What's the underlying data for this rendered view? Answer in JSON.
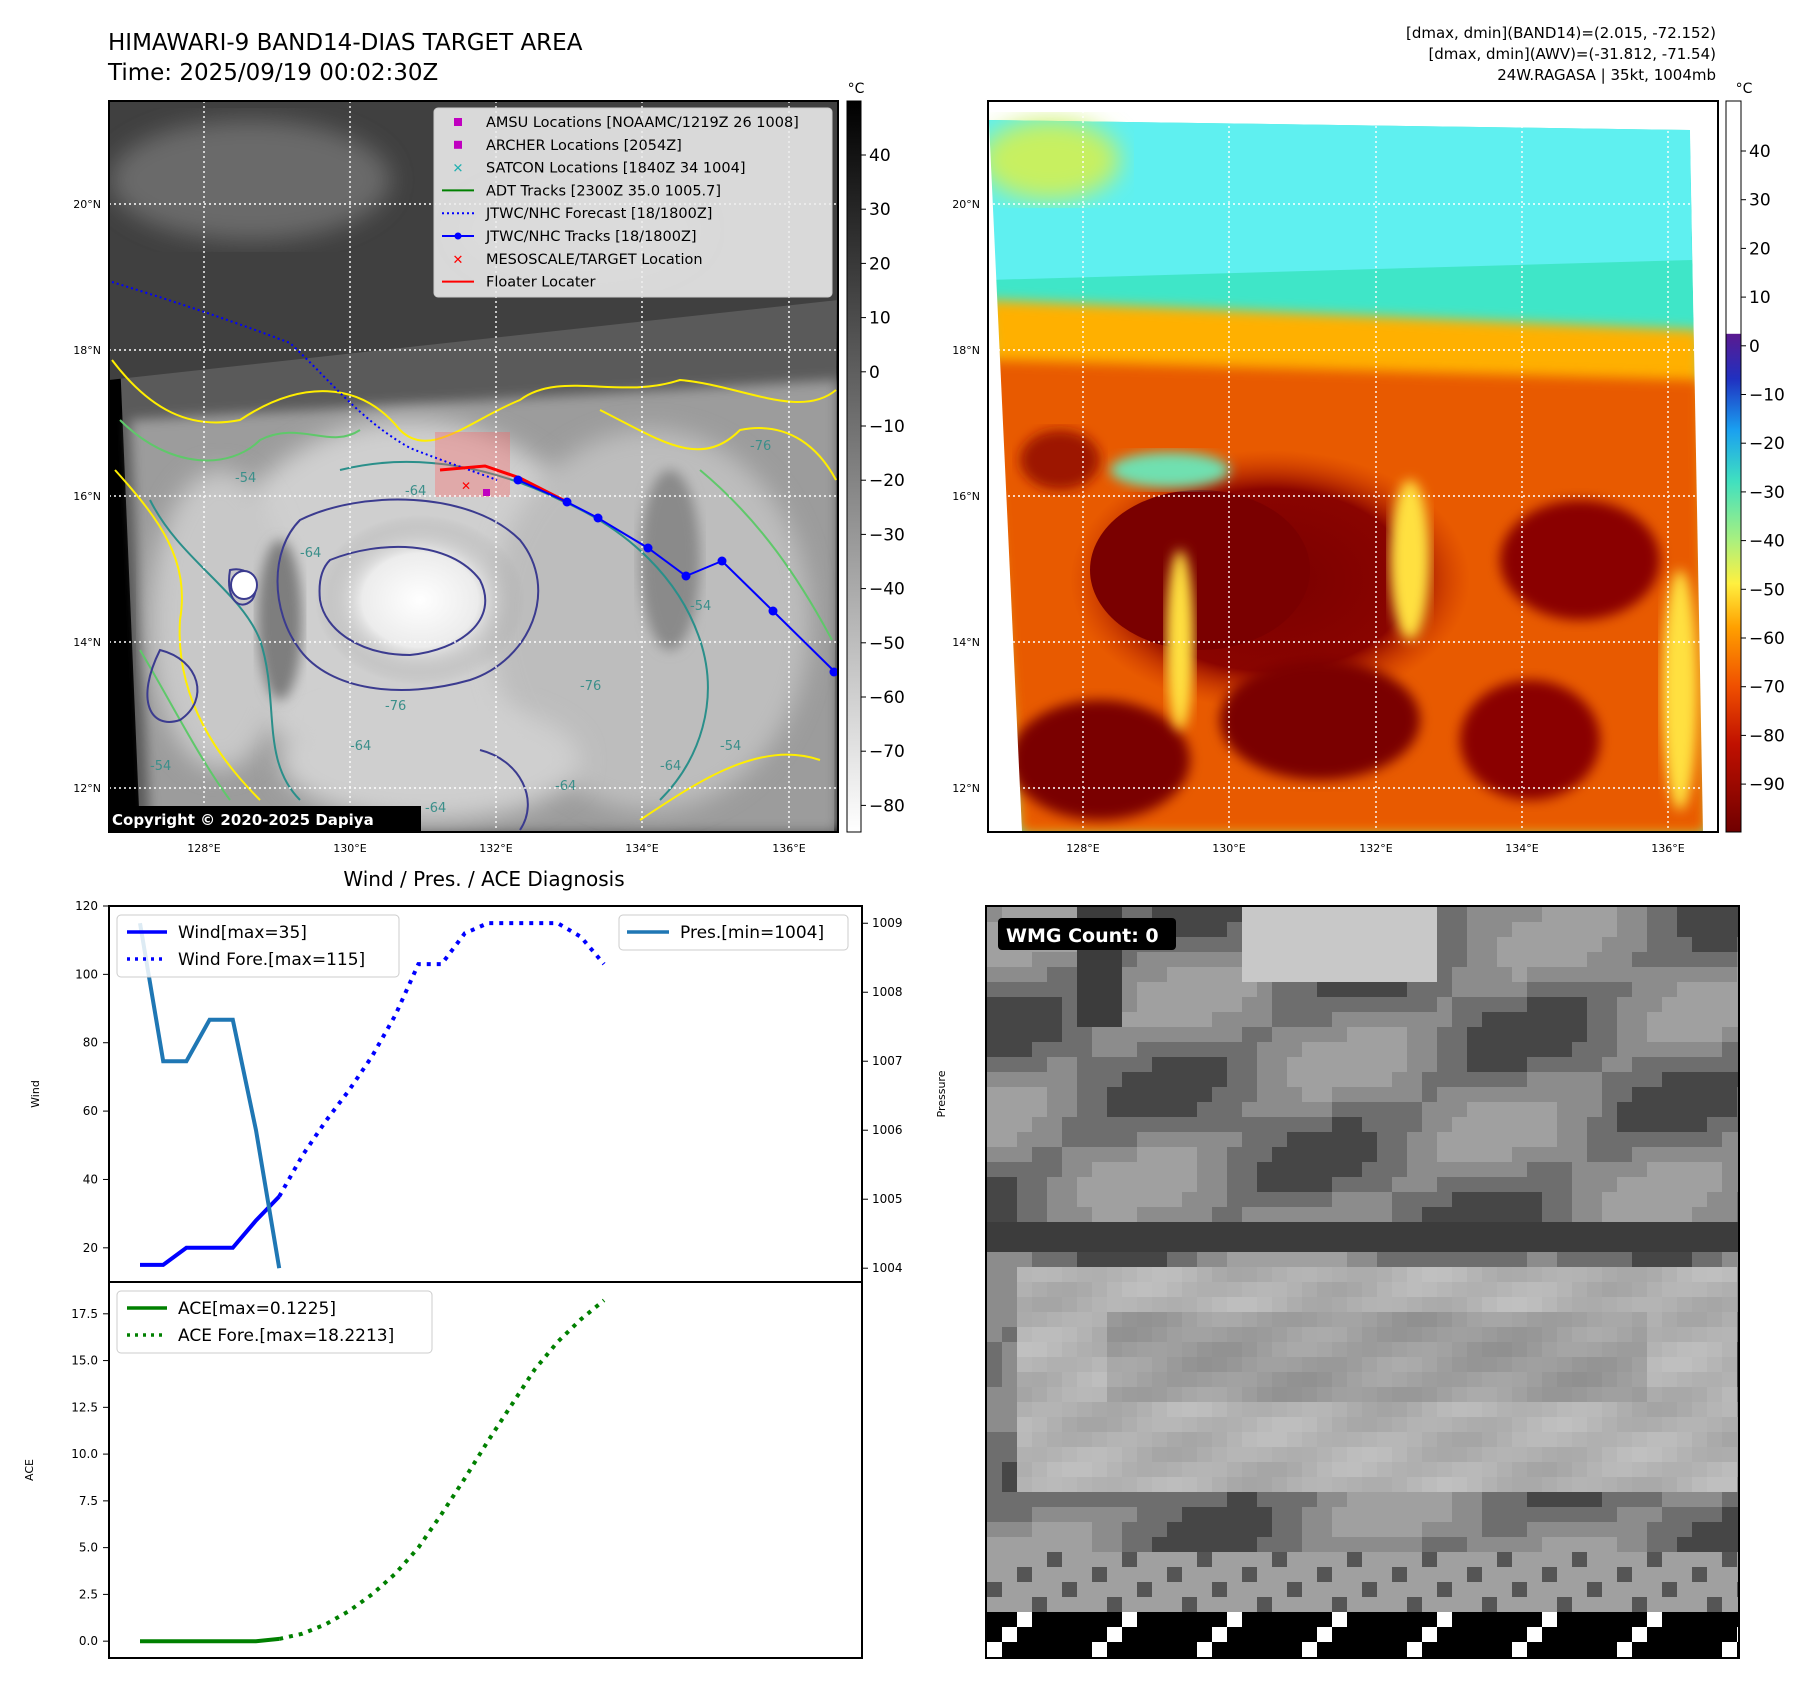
{
  "header": {
    "title": "HIMAWARI-9 BAND14-DIAS TARGET AREA",
    "time": "Time: 2025/09/19 00:02:30Z",
    "info_line1": "[dmax, dmin](BAND14)=(2.015, -72.152)",
    "info_line2": "[dmax, dmin](AWV)=(-31.812, -71.54)",
    "info_line3": "24W.RAGASA | 35kt, 1004mb"
  },
  "colors": {
    "wind": "#0000ff",
    "pressure": "#1f77b4",
    "ace": "#008000",
    "contour_yellow": "#ffee00",
    "contour_green": "#5fc86a",
    "contour_teal": "#2a8f8a",
    "contour_navy": "#3b3b8f"
  },
  "map_ir": {
    "colorbar_unit": "°C",
    "colorbar_ticks": [
      "40",
      "30",
      "20",
      "10",
      "0",
      "−10",
      "−20",
      "−30",
      "−40",
      "−50",
      "−60",
      "−70",
      "−80"
    ],
    "lat_labels": [
      "20°N",
      "18°N",
      "16°N",
      "14°N",
      "12°N"
    ],
    "lon_labels": [
      "128°E",
      "130°E",
      "132°E",
      "134°E",
      "136°E"
    ],
    "copyright": "Copyright © 2020-2025 Dapiya",
    "legend": [
      {
        "label": "AMSU Locations [NOAAMC/1219Z 26 1008]",
        "marker": "square",
        "color": "#c000c0"
      },
      {
        "label": "ARCHER Locations [2054Z]",
        "marker": "square",
        "color": "#c000c0"
      },
      {
        "label": "SATCON Locations [1840Z 34 1004]",
        "marker": "x",
        "color": "#20b0b0"
      },
      {
        "label": "ADT Tracks [2300Z 35.0 1005.7]",
        "marker": "line",
        "color": "#008000"
      },
      {
        "label": "JTWC/NHC Forecast [18/1800Z]",
        "marker": "dotted",
        "color": "#0000ff"
      },
      {
        "label": "JTWC/NHC Tracks [18/1800Z]",
        "marker": "line-dot",
        "color": "#0000ff"
      },
      {
        "label": "MESOSCALE/TARGET Location",
        "marker": "x",
        "color": "#ff0000"
      },
      {
        "label": "Floater Locater",
        "marker": "line",
        "color": "#ff0000"
      }
    ],
    "contour_labels": [
      "-64",
      "-64",
      "-54",
      "-54",
      "-76",
      "-64",
      "-64",
      "-64",
      "-76",
      "-54",
      "-64",
      "-76",
      "-54"
    ]
  },
  "map_awv": {
    "colorbar_unit": "°C",
    "colorbar_ticks": [
      "40",
      "30",
      "20",
      "10",
      "0",
      "−10",
      "−20",
      "−30",
      "−40",
      "−50",
      "−60",
      "−70",
      "−80",
      "−90"
    ],
    "lat_labels": [
      "20°N",
      "18°N",
      "16°N",
      "14°N",
      "12°N"
    ],
    "lon_labels": [
      "128°E",
      "130°E",
      "132°E",
      "134°E",
      "136°E"
    ]
  },
  "wmg": {
    "label": "WMG Count: 0"
  },
  "chart_data": [
    {
      "type": "line",
      "title": "Wind / Pres. / ACE Diagnosis",
      "ylabel": "Wind",
      "ylabel_right": "Pressure",
      "ylim": [
        10,
        120
      ],
      "ylim_right": [
        1003.8,
        1009.25
      ],
      "yticks": [
        20,
        40,
        60,
        80,
        100,
        120
      ],
      "yticks_right": [
        1004,
        1005,
        1006,
        1007,
        1008,
        1009
      ],
      "legend_left": [
        "Wind[max=35]",
        "Wind Fore.[max=115]"
      ],
      "legend_right": [
        "Pres.[min=1004]"
      ],
      "series": [
        {
          "name": "Wind[max=35]",
          "style": "solid",
          "color": "#0000ff",
          "axis": "left",
          "x": [
            0,
            1,
            2,
            3,
            4,
            5,
            6
          ],
          "values": [
            15,
            15,
            20,
            20,
            20,
            28,
            35
          ]
        },
        {
          "name": "Wind Fore.[max=115]",
          "style": "dotted",
          "color": "#0000ff",
          "axis": "left",
          "x": [
            6,
            7,
            8,
            9,
            10,
            11,
            12,
            13,
            14,
            15,
            16,
            17,
            18,
            19,
            20
          ],
          "values": [
            35,
            47,
            57,
            66,
            76,
            88,
            103,
            103,
            112,
            115,
            115,
            115,
            115,
            111,
            103
          ]
        },
        {
          "name": "Pres.[min=1004]",
          "style": "solid",
          "color": "#1f77b4",
          "axis": "right",
          "x": [
            0,
            1,
            2,
            3,
            4,
            5,
            6
          ],
          "values": [
            1009,
            1007,
            1007,
            1007.6,
            1007.6,
            1006,
            1004
          ]
        }
      ]
    },
    {
      "type": "line",
      "ylabel": "ACE",
      "ylim": [
        -0.9,
        19.2
      ],
      "yticks": [
        "0.0",
        "2.5",
        "5.0",
        "7.5",
        "10.0",
        "12.5",
        "15.0",
        "17.5"
      ],
      "legend": [
        "ACE[max=0.1225]",
        "ACE Fore.[max=18.2213]"
      ],
      "series": [
        {
          "name": "ACE[max=0.1225]",
          "style": "solid",
          "color": "#008000",
          "x": [
            0,
            1,
            2,
            3,
            4,
            5,
            6
          ],
          "values": [
            0,
            0,
            0,
            0,
            0,
            0,
            0.1225
          ]
        },
        {
          "name": "ACE Fore.[max=18.2213]",
          "style": "dotted",
          "color": "#008000",
          "x": [
            6,
            7,
            8,
            9,
            10,
            11,
            12,
            13,
            14,
            15,
            16,
            17,
            18,
            19,
            20
          ],
          "values": [
            0.1225,
            0.4,
            0.9,
            1.6,
            2.5,
            3.6,
            5.0,
            6.8,
            8.7,
            10.7,
            12.6,
            14.5,
            16.0,
            17.2,
            18.2213
          ]
        }
      ]
    }
  ]
}
